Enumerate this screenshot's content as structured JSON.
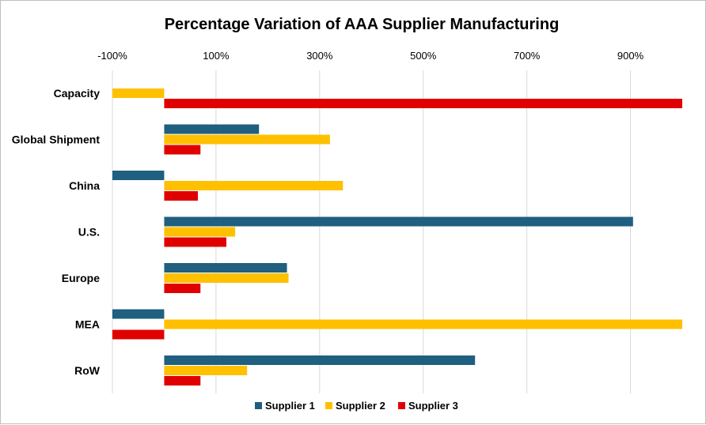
{
  "chart_data": {
    "type": "bar",
    "orientation": "horizontal",
    "title": "Percentage Variation of AAA Supplier Manufacturing",
    "xlabel": "",
    "ylabel": "",
    "xlim": [
      -100,
      1000
    ],
    "x_ticks": [
      -100,
      100,
      300,
      500,
      700,
      900
    ],
    "x_tick_labels": [
      "-100%",
      "100%",
      "300%",
      "500%",
      "700%",
      "900%"
    ],
    "x_axis_position": "top",
    "grid": true,
    "legend_position": "bottom",
    "categories": [
      "Capacity",
      "Global Shipment",
      "China",
      "U.S.",
      "Europe",
      "MEA",
      "RoW"
    ],
    "series": [
      {
        "name": "Supplier 1",
        "color": "#1f5f7f",
        "values": [
          0,
          183,
          -100,
          905,
          237,
          -100,
          600
        ]
      },
      {
        "name": "Supplier 2",
        "color": "#ffc000",
        "values": [
          -100,
          320,
          345,
          137,
          240,
          1000,
          160
        ]
      },
      {
        "name": "Supplier 3",
        "color": "#e00000",
        "values": [
          1000,
          70,
          65,
          120,
          70,
          -100,
          70
        ]
      }
    ]
  }
}
